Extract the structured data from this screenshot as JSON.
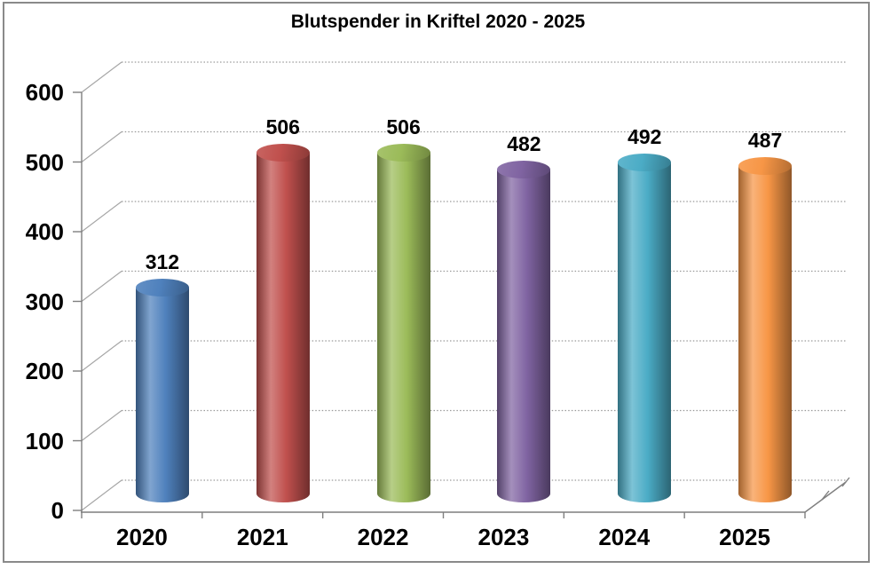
{
  "title": "Blutspender in Kriftel 2020 - 2025",
  "chart_data": {
    "type": "bar",
    "subtype": "3d-cylinder",
    "title": "Blutspender in Kriftel 2020 - 2025",
    "categories": [
      "2020",
      "2021",
      "2022",
      "2023",
      "2024",
      "2025"
    ],
    "series": [
      {
        "name": "Blutspender",
        "values": [
          312,
          506,
          506,
          482,
          492,
          487
        ]
      }
    ],
    "values": [
      312,
      506,
      506,
      482,
      492,
      487
    ],
    "data_labels": [
      "312",
      "506",
      "506",
      "482",
      "492",
      "487"
    ],
    "bar_colors": [
      "#4F81BD",
      "#C0504D",
      "#9BBB59",
      "#8064A2",
      "#4BACC6",
      "#F79646"
    ],
    "xlabel": "",
    "ylabel": "",
    "ylim": [
      0,
      600
    ],
    "yticks": [
      0,
      100,
      200,
      300,
      400,
      500,
      600
    ],
    "grid": true,
    "legend": false,
    "axis_color": "#7f7f7f",
    "grid_color": "#9a9a9a",
    "text_color": "#000000"
  }
}
